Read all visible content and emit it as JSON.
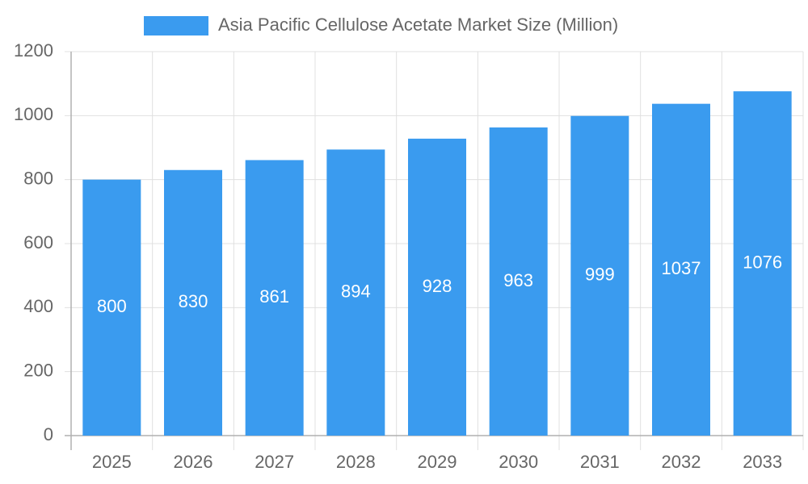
{
  "chart_data": {
    "type": "bar",
    "categories": [
      "2025",
      "2026",
      "2027",
      "2028",
      "2029",
      "2030",
      "2031",
      "2032",
      "2033"
    ],
    "series": [
      {
        "name": "Asia Pacific Cellulose Acetate Market Size (Million)",
        "color": "#3a9bef",
        "values": [
          800,
          830,
          861,
          894,
          928,
          963,
          999,
          1037,
          1076
        ]
      }
    ],
    "ylim": [
      0,
      1200
    ],
    "yticks": [
      0,
      200,
      400,
      600,
      800,
      1000,
      1200
    ],
    "grid": true,
    "legend": "top"
  }
}
